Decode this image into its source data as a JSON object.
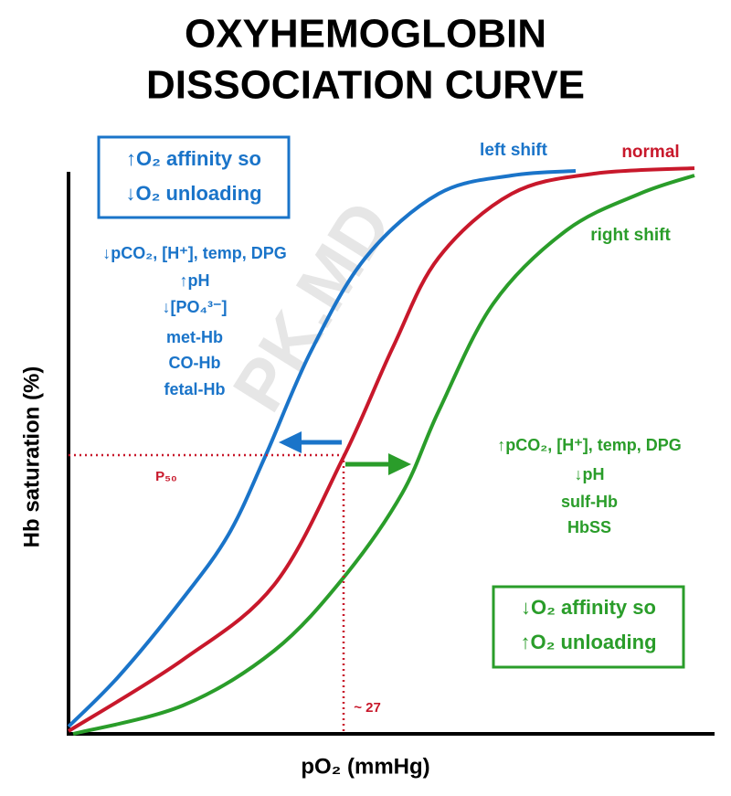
{
  "header": {
    "title": [
      "OXYHEMOGLOBIN",
      "DISSOCIATION CURVE"
    ]
  },
  "axes": {
    "y_label": "Hb saturation (%)",
    "x_label": "pO₂ (mmHg)"
  },
  "curves": [
    {
      "label": "left shift"
    },
    {
      "label": "normal"
    },
    {
      "label": "right shift"
    }
  ],
  "left_box": [
    "↑O₂ affinity so",
    "↓O₂ unloading"
  ],
  "left_causes": [
    "↓pCO₂, [H⁺], temp, DPG",
    "↑pH",
    "↓[PO₄³⁻]",
    "met-Hb",
    "CO-Hb",
    "fetal-Hb"
  ],
  "right_causes": [
    "↑pCO₂, [H⁺], temp, DPG",
    "↓pH",
    "sulf-Hb",
    "HbSS"
  ],
  "right_box": [
    "↓O₂ affinity so",
    "↑O₂ unloading"
  ],
  "p50": {
    "label": "P₅₀",
    "value_label": "~ 27"
  },
  "watermark": "PK.MD"
}
